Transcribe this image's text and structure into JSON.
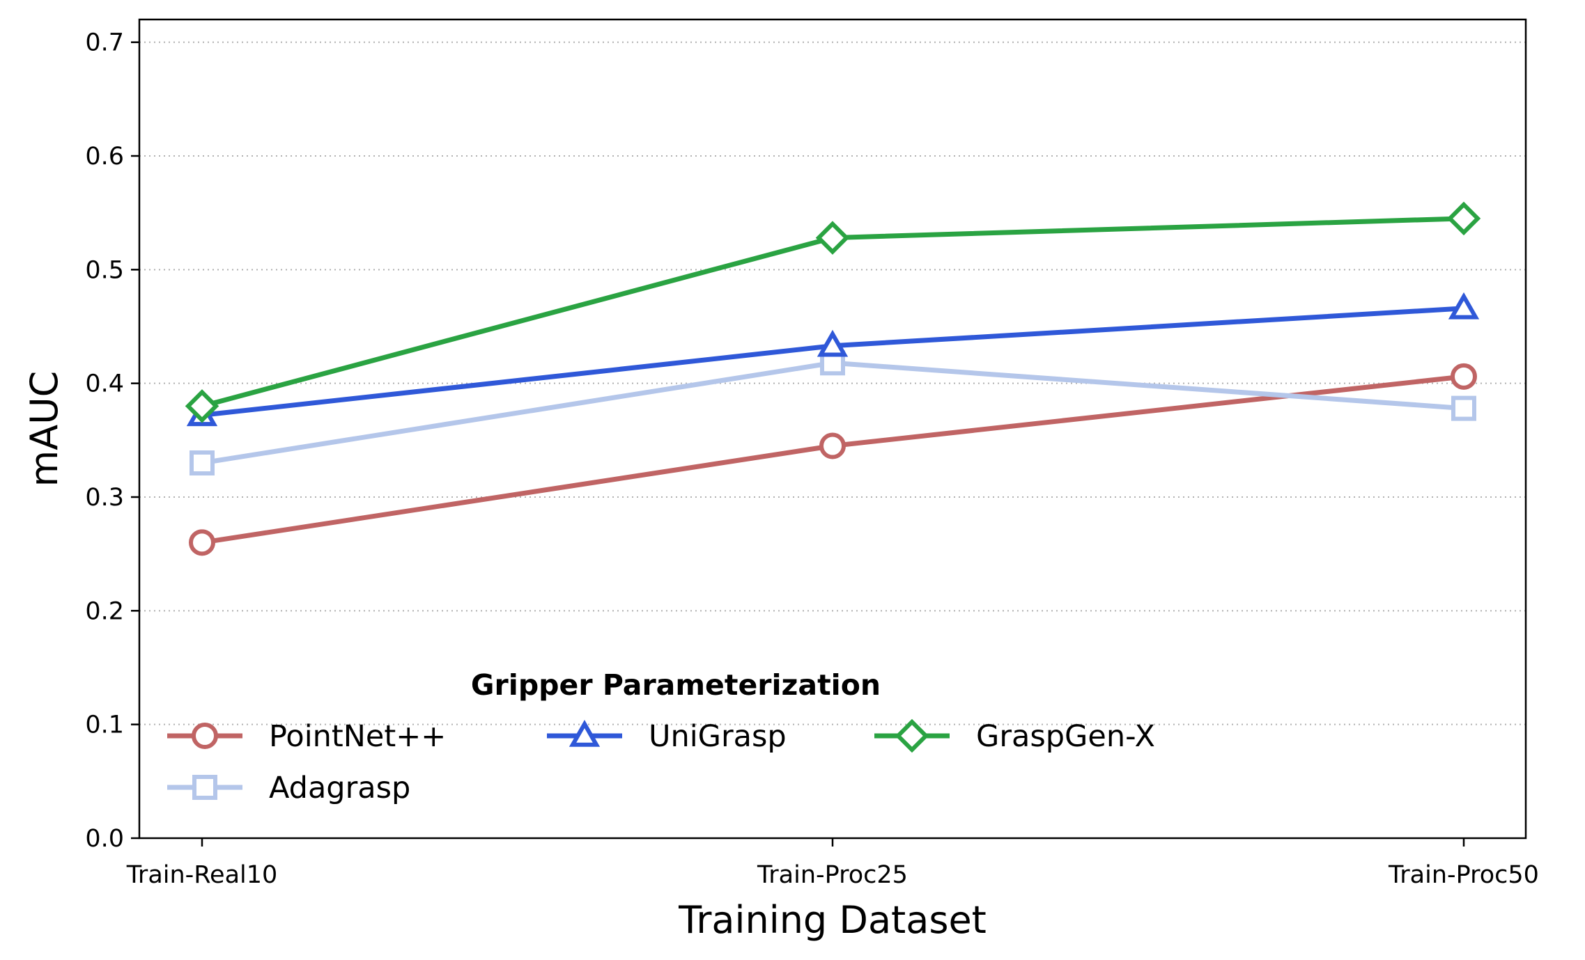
{
  "chart_data": {
    "type": "line",
    "title": "",
    "xlabel": "Training Dataset",
    "ylabel": "mAUC",
    "categories": [
      "Train-Real10",
      "Train-Proc25",
      "Train-Proc50"
    ],
    "ylim": [
      0.0,
      0.72
    ],
    "yticks": [
      "0.0",
      "0.1",
      "0.2",
      "0.3",
      "0.4",
      "0.5",
      "0.6",
      "0.7"
    ],
    "grid": "horizontal dotted",
    "legend": {
      "title": "Gripper Parameterization",
      "placement": "lower-left",
      "columns": 3
    },
    "series": [
      {
        "name": "PointNet++",
        "values": [
          0.26,
          0.345,
          0.406
        ],
        "color": "#c06464",
        "marker": "circle"
      },
      {
        "name": "Adagrasp",
        "values": [
          0.33,
          0.418,
          0.378
        ],
        "color": "#b4c6ea",
        "marker": "square"
      },
      {
        "name": "UniGrasp",
        "values": [
          0.372,
          0.433,
          0.466
        ],
        "color": "#2f58d8",
        "marker": "triangle"
      },
      {
        "name": "GraspGen-X",
        "values": [
          0.38,
          0.528,
          0.545
        ],
        "color": "#2aa342",
        "marker": "diamond"
      }
    ]
  }
}
